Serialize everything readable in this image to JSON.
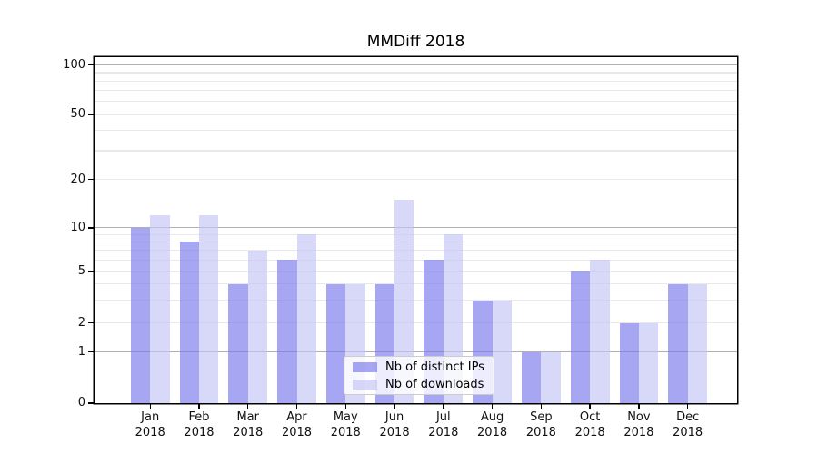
{
  "chart_data": {
    "type": "bar",
    "title": "MMDiff 2018",
    "categories": [
      "Jan",
      "Feb",
      "Mar",
      "Apr",
      "May",
      "Jun",
      "Jul",
      "Aug",
      "Sep",
      "Oct",
      "Nov",
      "Dec"
    ],
    "category_year": "2018",
    "series": [
      {
        "name": "Nb of distinct IPs",
        "color": "#a6a6f2",
        "values": [
          10,
          8,
          4,
          6,
          4,
          4,
          6,
          3,
          1,
          5,
          2,
          4
        ]
      },
      {
        "name": "Nb of downloads",
        "color": "#d8d8f8",
        "values": [
          12,
          12,
          7,
          9,
          4,
          15,
          9,
          3,
          1,
          6,
          2,
          4
        ]
      }
    ],
    "y_axis": {
      "scale": "log-like",
      "tick_labels": [
        0,
        1,
        2,
        5,
        10,
        20,
        50,
        100
      ],
      "major_gridlines": [
        1,
        10,
        100
      ],
      "minor_gridlines": [
        3,
        4,
        6,
        7,
        8,
        9,
        30,
        40,
        60,
        70,
        80,
        90
      ],
      "range_top": 100
    },
    "grid": {
      "major_color": "#b0b0b0",
      "minor_color": "#e9e9e9"
    },
    "legend": {
      "entries": [
        "Nb of distinct IPs",
        "Nb of downloads"
      ],
      "position": "lower-center"
    }
  }
}
